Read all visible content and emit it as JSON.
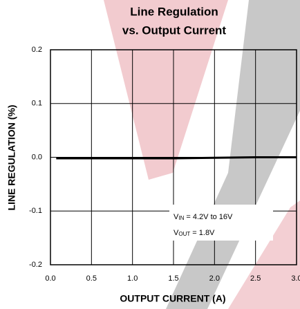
{
  "chart_data": {
    "type": "line",
    "title": "Line Regulation",
    "subtitle": "vs. Output Current",
    "x_label": "OUTPUT CURRENT (A)",
    "y_label": "LINE REGULATION (%)",
    "x": [
      0.07,
      0.5,
      1.0,
      1.5,
      2.0,
      2.5,
      3.0
    ],
    "series": [
      {
        "color": "#000000",
        "values": [
          -0.002,
          -0.002,
          -0.002,
          -0.002,
          -0.001,
          0.0,
          0.0
        ]
      }
    ],
    "xlim": [
      0,
      3
    ],
    "ylim": [
      -0.2,
      0.2
    ],
    "xticks": [
      {
        "value": 0,
        "label": "0.0"
      },
      0.5,
      {
        "value": 1,
        "label": "1.0"
      },
      1.5,
      {
        "value": 2,
        "label": "2.0"
      },
      2.5,
      {
        "value": 3,
        "label": "3.0"
      }
    ],
    "yticks": [
      -0.2,
      -0.1,
      {
        "value": 0,
        "label": "0.0"
      },
      0.1,
      0.2
    ],
    "grid": true,
    "annotations": [
      {
        "main": "V",
        "sub": "IN",
        "rest": " = 4.2V to 16V"
      },
      {
        "main": "V",
        "sub": "OUT",
        "rest": " = 1.8V"
      }
    ]
  }
}
